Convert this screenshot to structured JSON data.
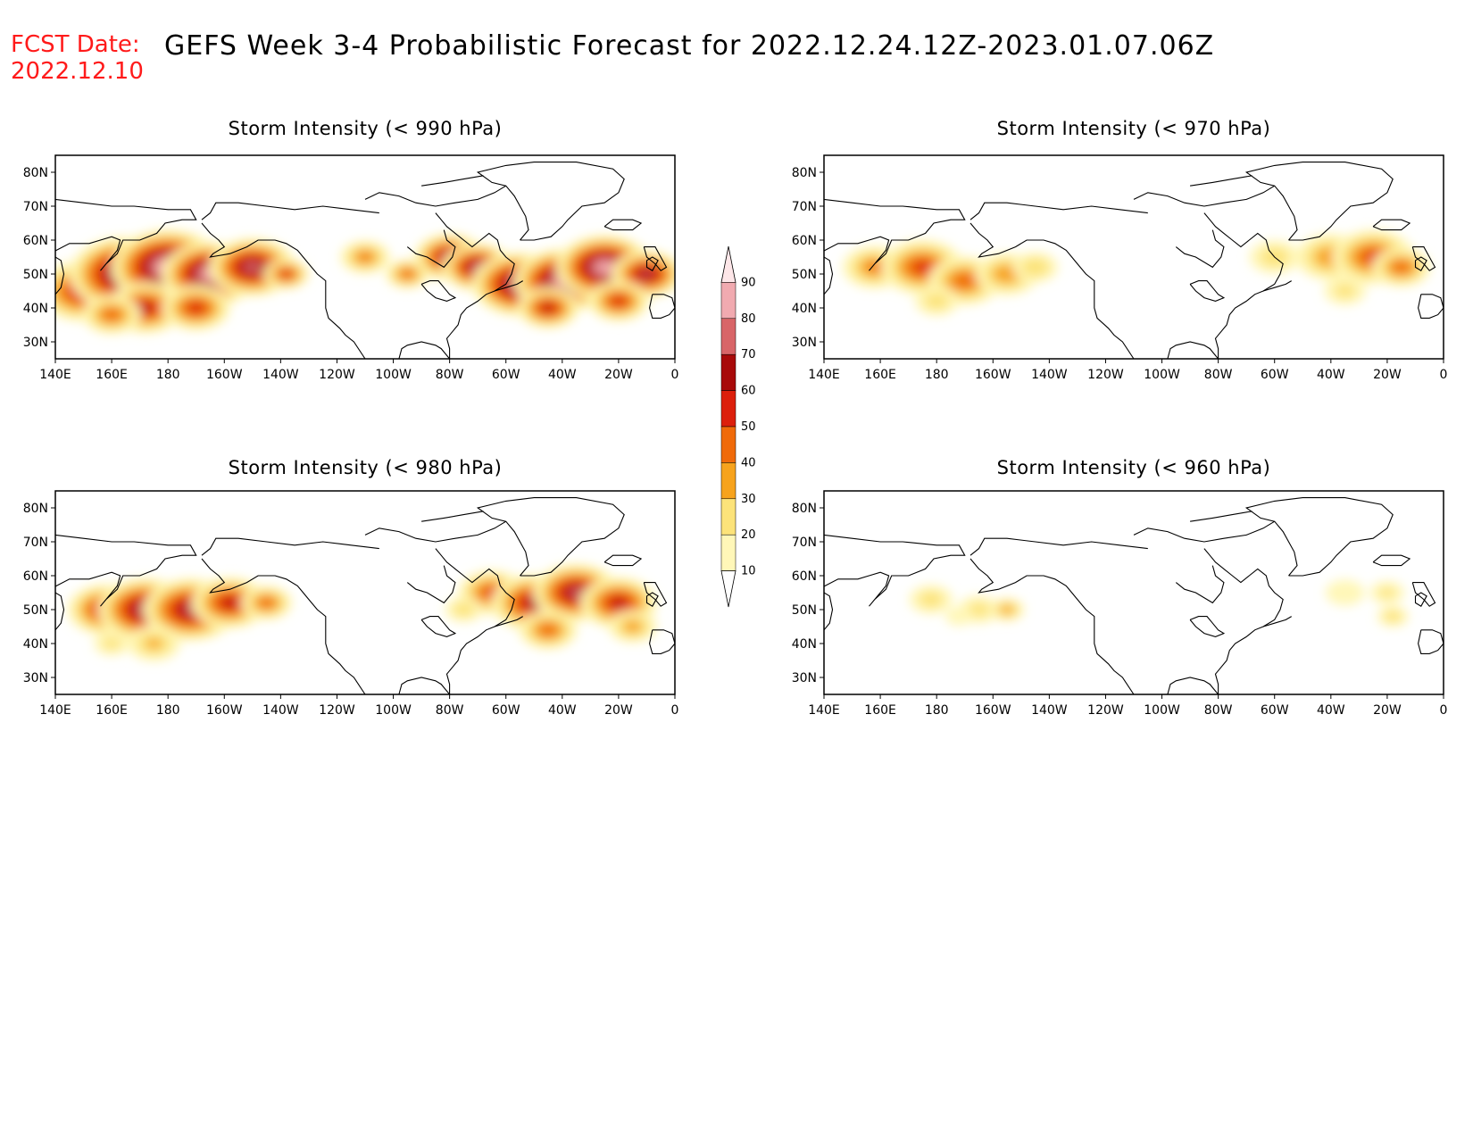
{
  "header": {
    "fcst_label": "FCST Date:",
    "fcst_date": "2022.12.10",
    "title": "GEFS Week 3-4 Probabilistic Forecast for 2022.12.24.12Z-2023.01.07.06Z"
  },
  "axes": {
    "lat_labels": [
      "80N",
      "70N",
      "60N",
      "50N",
      "40N",
      "30N"
    ],
    "lat_values": [
      80,
      70,
      60,
      50,
      40,
      30
    ],
    "lat_range": [
      25,
      85
    ],
    "lon_labels": [
      "140E",
      "160E",
      "180",
      "160W",
      "140W",
      "120W",
      "100W",
      "80W",
      "60W",
      "40W",
      "20W",
      "0"
    ],
    "lon_range": [
      140,
      360
    ]
  },
  "panels": [
    {
      "id": "p990",
      "title": "Storm Intensity (< 990 hPa)"
    },
    {
      "id": "p970",
      "title": "Storm Intensity (< 970 hPa)"
    },
    {
      "id": "p980",
      "title": "Storm Intensity (< 980 hPa)"
    },
    {
      "id": "p960",
      "title": "Storm Intensity (< 960 hPa)"
    }
  ],
  "colorbar": {
    "levels": [
      "10",
      "20",
      "30",
      "40",
      "50",
      "60",
      "70",
      "80",
      "90"
    ],
    "colors": [
      "#ffffff",
      "#fff7b8",
      "#fce37a",
      "#f7a31d",
      "#f06a0a",
      "#dc1f0c",
      "#a80a0a",
      "#d86568",
      "#f1aab0",
      "#fde6e8"
    ]
  },
  "fields": {
    "p990": [
      {
        "lon": 150,
        "lat": 45,
        "r": 12,
        "v": 60
      },
      {
        "lon": 165,
        "lat": 50,
        "r": 14,
        "v": 85
      },
      {
        "lon": 180,
        "lat": 52,
        "r": 14,
        "v": 92
      },
      {
        "lon": 195,
        "lat": 50,
        "r": 12,
        "v": 88
      },
      {
        "lon": 210,
        "lat": 52,
        "r": 11,
        "v": 75
      },
      {
        "lon": 172,
        "lat": 40,
        "r": 10,
        "v": 60
      },
      {
        "lon": 160,
        "lat": 38,
        "r": 8,
        "v": 45
      },
      {
        "lon": 190,
        "lat": 40,
        "r": 9,
        "v": 55
      },
      {
        "lon": 222,
        "lat": 50,
        "r": 6,
        "v": 55
      },
      {
        "lon": 250,
        "lat": 55,
        "r": 7,
        "v": 40
      },
      {
        "lon": 265,
        "lat": 50,
        "r": 6,
        "v": 45
      },
      {
        "lon": 280,
        "lat": 55,
        "r": 9,
        "v": 70
      },
      {
        "lon": 290,
        "lat": 52,
        "r": 9,
        "v": 75
      },
      {
        "lon": 305,
        "lat": 47,
        "r": 12,
        "v": 82
      },
      {
        "lon": 320,
        "lat": 48,
        "r": 12,
        "v": 85
      },
      {
        "lon": 335,
        "lat": 52,
        "r": 12,
        "v": 88
      },
      {
        "lon": 350,
        "lat": 50,
        "r": 9,
        "v": 70
      },
      {
        "lon": 315,
        "lat": 40,
        "r": 8,
        "v": 60
      },
      {
        "lon": 340,
        "lat": 42,
        "r": 8,
        "v": 55
      }
    ],
    "p970": [
      {
        "lon": 158,
        "lat": 52,
        "r": 9,
        "v": 40
      },
      {
        "lon": 175,
        "lat": 52,
        "r": 11,
        "v": 52
      },
      {
        "lon": 190,
        "lat": 48,
        "r": 10,
        "v": 45
      },
      {
        "lon": 205,
        "lat": 50,
        "r": 9,
        "v": 38
      },
      {
        "lon": 215,
        "lat": 52,
        "r": 7,
        "v": 28
      },
      {
        "lon": 180,
        "lat": 42,
        "r": 7,
        "v": 25
      },
      {
        "lon": 300,
        "lat": 55,
        "r": 8,
        "v": 25
      },
      {
        "lon": 320,
        "lat": 55,
        "r": 10,
        "v": 38
      },
      {
        "lon": 335,
        "lat": 55,
        "r": 11,
        "v": 50
      },
      {
        "lon": 345,
        "lat": 52,
        "r": 8,
        "v": 45
      },
      {
        "lon": 325,
        "lat": 45,
        "r": 7,
        "v": 22
      }
    ],
    "p980": [
      {
        "lon": 158,
        "lat": 50,
        "r": 10,
        "v": 60
      },
      {
        "lon": 172,
        "lat": 50,
        "r": 12,
        "v": 75
      },
      {
        "lon": 188,
        "lat": 50,
        "r": 12,
        "v": 70
      },
      {
        "lon": 202,
        "lat": 52,
        "r": 10,
        "v": 60
      },
      {
        "lon": 215,
        "lat": 52,
        "r": 7,
        "v": 45
      },
      {
        "lon": 175,
        "lat": 40,
        "r": 8,
        "v": 30
      },
      {
        "lon": 160,
        "lat": 40,
        "r": 6,
        "v": 22
      },
      {
        "lon": 295,
        "lat": 55,
        "r": 9,
        "v": 50
      },
      {
        "lon": 310,
        "lat": 52,
        "r": 11,
        "v": 65
      },
      {
        "lon": 325,
        "lat": 55,
        "r": 11,
        "v": 72
      },
      {
        "lon": 340,
        "lat": 52,
        "r": 10,
        "v": 60
      },
      {
        "lon": 315,
        "lat": 44,
        "r": 8,
        "v": 45
      },
      {
        "lon": 345,
        "lat": 45,
        "r": 7,
        "v": 35
      },
      {
        "lon": 285,
        "lat": 50,
        "r": 6,
        "v": 25
      }
    ],
    "p960": [
      {
        "lon": 178,
        "lat": 53,
        "r": 7,
        "v": 24
      },
      {
        "lon": 195,
        "lat": 50,
        "r": 7,
        "v": 22
      },
      {
        "lon": 205,
        "lat": 50,
        "r": 5,
        "v": 35
      },
      {
        "lon": 188,
        "lat": 48,
        "r": 5,
        "v": 18
      },
      {
        "lon": 325,
        "lat": 55,
        "r": 7,
        "v": 18
      },
      {
        "lon": 340,
        "lat": 55,
        "r": 6,
        "v": 20
      },
      {
        "lon": 342,
        "lat": 48,
        "r": 5,
        "v": 25
      }
    ]
  }
}
